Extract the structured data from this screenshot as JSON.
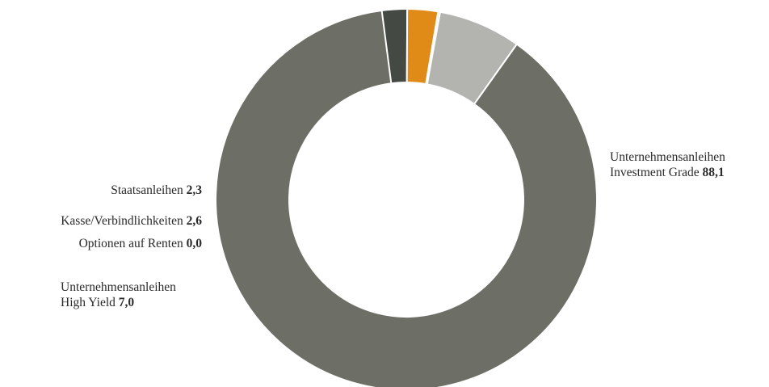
{
  "chart_data": {
    "type": "pie",
    "variant": "donut",
    "start_angle_deg": 262,
    "direction": "clockwise",
    "slices": [
      {
        "label": [
          "Staatsanleihen"
        ],
        "value": 2.3,
        "value_text": "2,3",
        "color": "#444a43"
      },
      {
        "label": [
          "Kasse/Verbindlichkeiten"
        ],
        "value": 2.6,
        "value_text": "2,6",
        "color": "#e08a17"
      },
      {
        "label": [
          "Optionen auf Renten"
        ],
        "value": 0.0,
        "value_text": "0,0",
        "color": "#d7d7d2"
      },
      {
        "label": [
          "Unternehmensanleihen",
          "High Yield"
        ],
        "value": 7.0,
        "value_text": "7,0",
        "color": "#b3b3b0"
      },
      {
        "label": [
          "Unternehmensanleihen",
          "Investment Grade"
        ],
        "value": 88.1,
        "value_text": "88,1",
        "color": "#6d6f67"
      }
    ]
  }
}
